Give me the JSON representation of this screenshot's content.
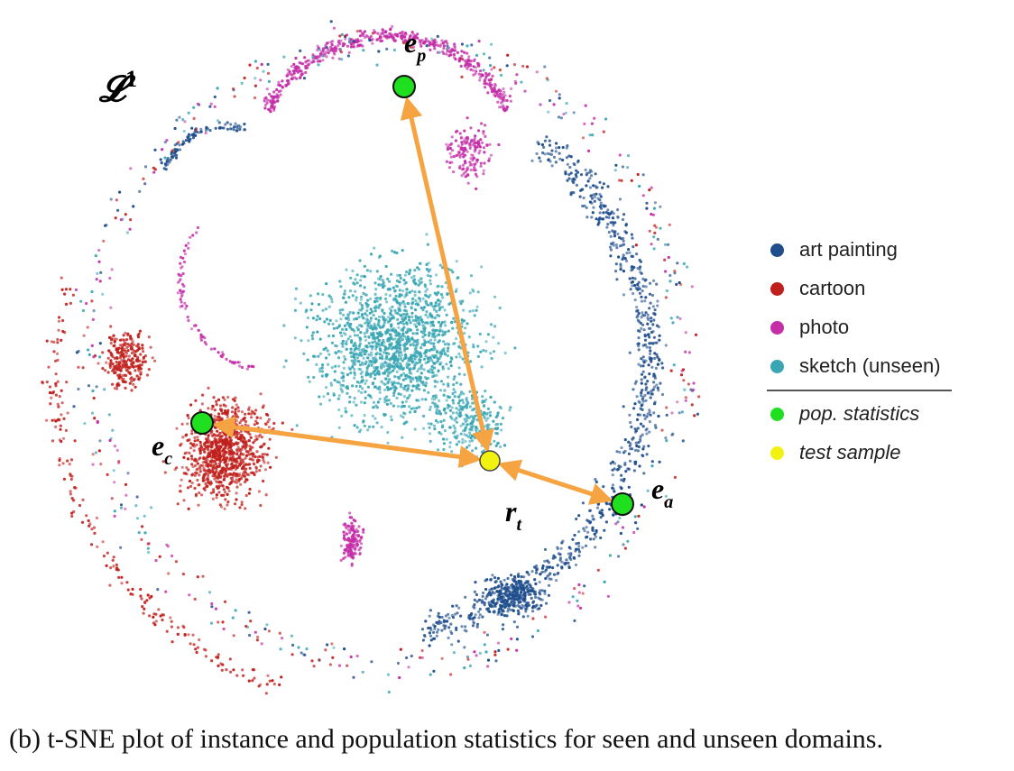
{
  "chart_data": {
    "type": "scatter",
    "method": "t-SNE",
    "layer_label": "𝓛",
    "layer_index": "1",
    "series": [
      {
        "name": "art painting",
        "color": "#1f4e8c",
        "italic": false
      },
      {
        "name": "cartoon",
        "color": "#c0201c",
        "italic": false
      },
      {
        "name": "photo",
        "color": "#c42fa8",
        "italic": false
      },
      {
        "name": "sketch (unseen)",
        "color": "#3aa6b4",
        "italic": false
      },
      {
        "name": "pop. statistics",
        "color": "#1fe01f",
        "italic": true
      },
      {
        "name": "test sample",
        "color": "#f2f210",
        "italic": true
      }
    ],
    "points": {
      "pop_statistics": [
        {
          "label": "e",
          "sub": "p"
        },
        {
          "label": "e",
          "sub": "c"
        },
        {
          "label": "e",
          "sub": "a"
        }
      ],
      "test_sample": {
        "label": "r",
        "sub": "t"
      }
    },
    "arrow_color": "#f5a441"
  },
  "caption": "(b) t-SNE plot of instance and population statistics for seen and unseen domains."
}
